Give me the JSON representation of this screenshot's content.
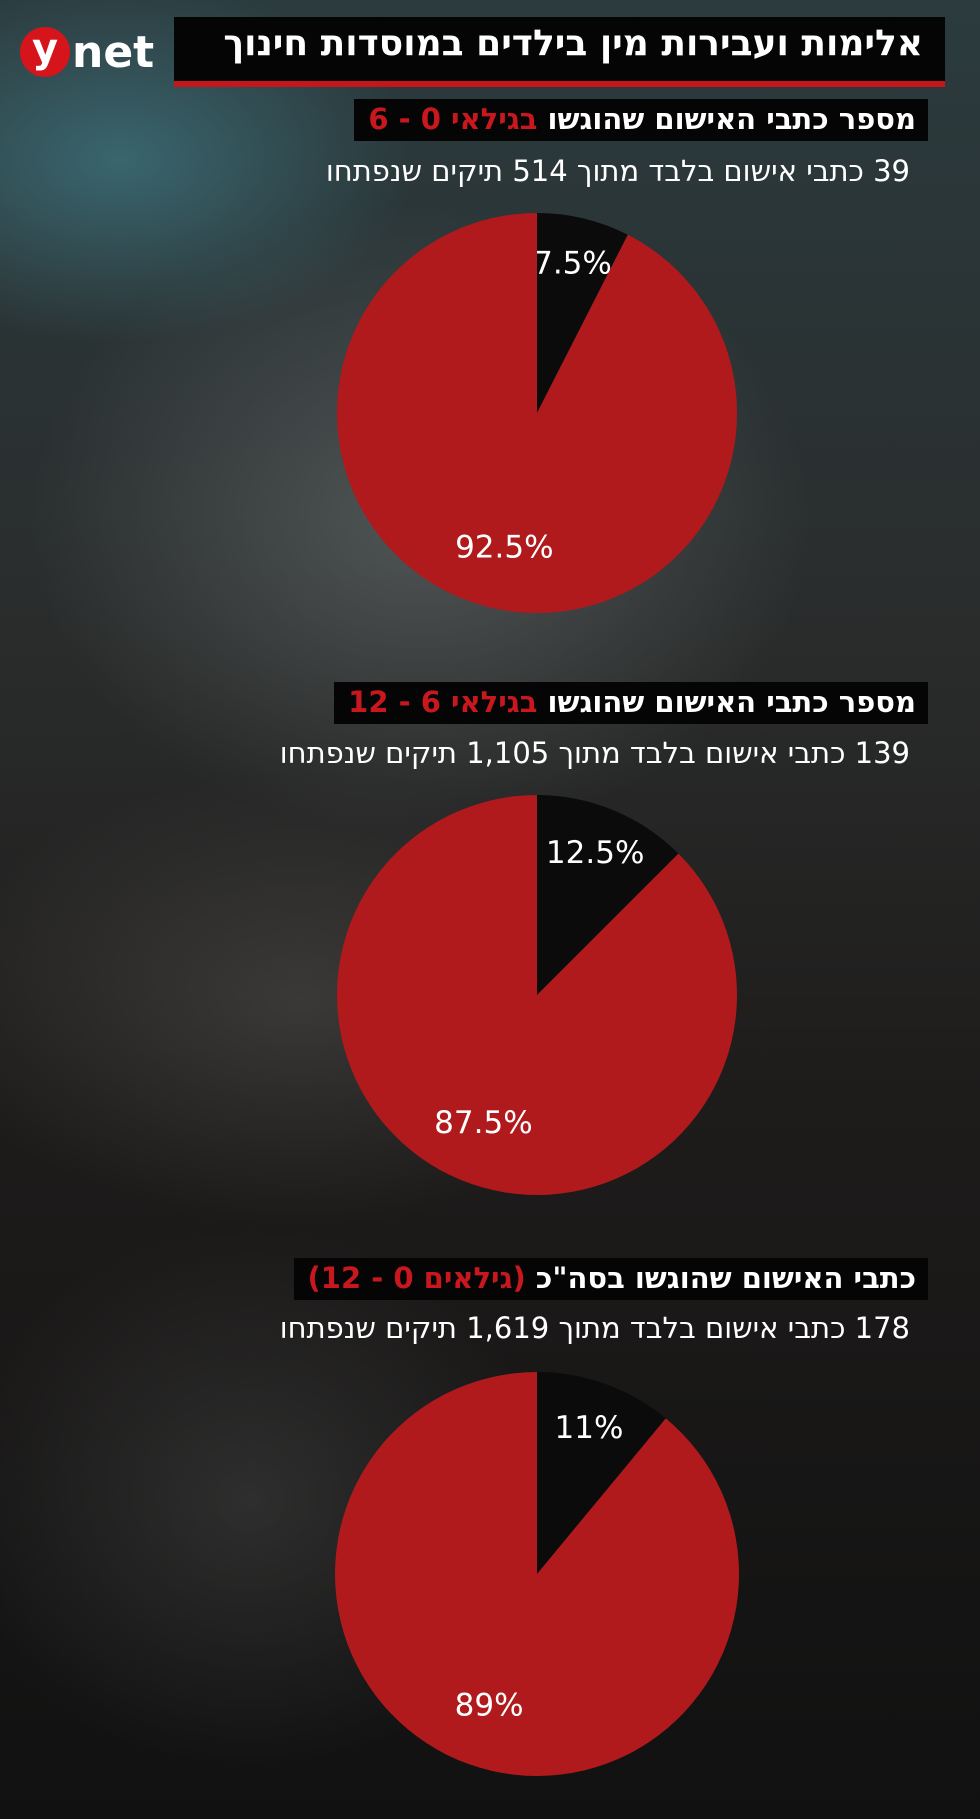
{
  "header": {
    "logo": {
      "mark": "y",
      "text": "net"
    },
    "title": "אלימות ועבירות מין בילדים במוסדות חינוך"
  },
  "chart_data": [
    {
      "type": "pie",
      "title": "מספר כתבי האישום שהוגשו",
      "title_highlight": "בגילאי 0 - 6",
      "subtitle": "39 כתבי אישום בלבד מתוך 514 תיקים שנפתחו",
      "values": [
        7.5,
        92.5
      ],
      "value_labels": [
        "7.5%",
        "92.5%"
      ],
      "colors": [
        "#0b0b0b",
        "#b01a1c"
      ]
    },
    {
      "type": "pie",
      "title": "מספר כתבי האישום שהוגשו",
      "title_highlight": "בגילאי 6 - 12",
      "subtitle": "139 כתבי אישום בלבד מתוך 1,105 תיקים שנפתחו",
      "values": [
        12.5,
        87.5
      ],
      "value_labels": [
        "12.5%",
        "87.5%"
      ],
      "colors": [
        "#0b0b0b",
        "#b01a1c"
      ]
    },
    {
      "type": "pie",
      "title": "כתבי האישום שהוגשו בסה\"כ",
      "title_highlight": "(גילאים 0 - 12)",
      "subtitle": "178 כתבי אישום בלבד מתוך 1,619 תיקים שנפתחו",
      "values": [
        11,
        89
      ],
      "value_labels": [
        "11%",
        "89%"
      ],
      "colors": [
        "#0b0b0b",
        "#b01a1c"
      ]
    }
  ]
}
